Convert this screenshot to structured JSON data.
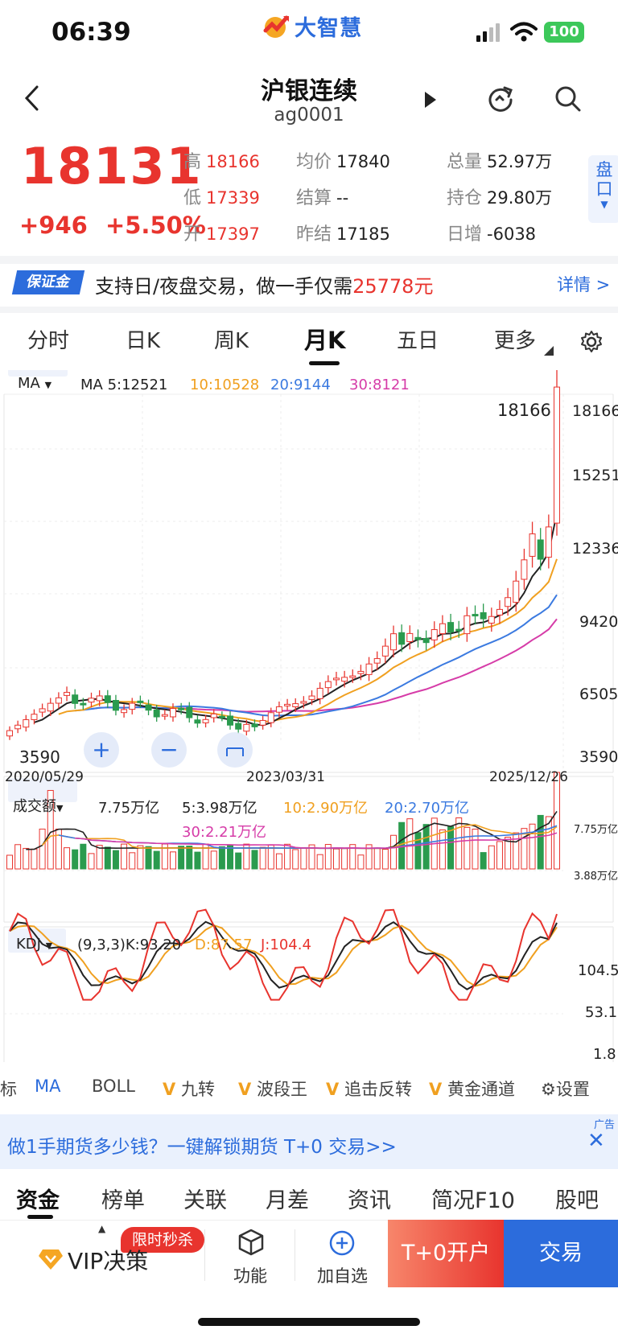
{
  "status": {
    "time": "06:39",
    "battery": "100"
  },
  "app": {
    "logo_text": "大智慧"
  },
  "header": {
    "title": "沪银连续",
    "code": "ag0001"
  },
  "quote": {
    "last": "18131",
    "change": "+946",
    "change_pct": "+5.50%",
    "fields": [
      {
        "label": "高",
        "value": "18166",
        "red": true
      },
      {
        "label": "均价",
        "value": "17840",
        "red": false
      },
      {
        "label": "总量",
        "value": "52.97万",
        "red": false
      },
      {
        "label": "低",
        "value": "17339",
        "red": true
      },
      {
        "label": "结算",
        "value": "--",
        "red": false
      },
      {
        "label": "持仓",
        "value": "29.80万",
        "red": false
      },
      {
        "label": "开",
        "value": "17397",
        "red": true
      },
      {
        "label": "昨结",
        "value": "17185",
        "red": false
      },
      {
        "label": "日增",
        "value": "-6038",
        "red": false
      }
    ],
    "pankou_label": "盘口"
  },
  "banner": {
    "tag": "保证金",
    "text": "支持日/夜盘交易，做一手仅需",
    "amount": "25778元",
    "more": "详情 >"
  },
  "ktabs": [
    "分时",
    "日K",
    "周K",
    "月K",
    "五日",
    "更多"
  ],
  "active_ktab": "月K",
  "main_legend": {
    "selector": "MA",
    "ma5": "MA 5:12521",
    "ma10": "10:10528",
    "ma20": "20:9144",
    "ma30": "30:8121"
  },
  "volume_legend": {
    "selector": "成交额",
    "total": "7.75万亿",
    "ma5": "5:3.98万亿",
    "ma10": "10:2.90万亿",
    "ma20": "20:2.70万亿",
    "ma30": "30:2.21万亿"
  },
  "kdj_legend": {
    "selector": "KDJ",
    "k": "(9,3,3)K:93.20",
    "d": "D:87.57",
    "j": "J:104.4"
  },
  "chart_data": {
    "type": "candlestick",
    "price_axis": [
      "18166",
      "15251",
      "12336",
      "9420",
      "6505",
      "3590"
    ],
    "date_axis": [
      "2020/05/29",
      "2023/03/31",
      "2025/12/26"
    ],
    "high_label": "18166",
    "low_label": "3590",
    "volume_axis": [
      "7.75万亿",
      "3.88万亿"
    ],
    "kdj_axis": [
      "104.5",
      "53.1",
      "1.8"
    ],
    "colors": {
      "up": "#e8342e",
      "down": "#2a9b4e",
      "ma5": "#222222",
      "ma10": "#f0a020",
      "ma20": "#3b7ae0",
      "ma30": "#d63ca8"
    }
  },
  "indicators": [
    "标",
    "MA",
    "BOLL",
    "九转",
    "波段王",
    "追击反转",
    "黄金通道",
    "设置"
  ],
  "ad": {
    "text": "做1手期货多少钱？一键解锁期货 T+0 交易>>",
    "tag": "广告"
  },
  "bottom_tabs": [
    "资金",
    "榜单",
    "关联",
    "月差",
    "资讯",
    "简况F10",
    "股吧"
  ],
  "bottom_bar": {
    "vip_badge": "限时秒杀",
    "vip": "VIP决策",
    "func": "功能",
    "add": "加自选",
    "t0": "T+0开户",
    "trade": "交易"
  }
}
